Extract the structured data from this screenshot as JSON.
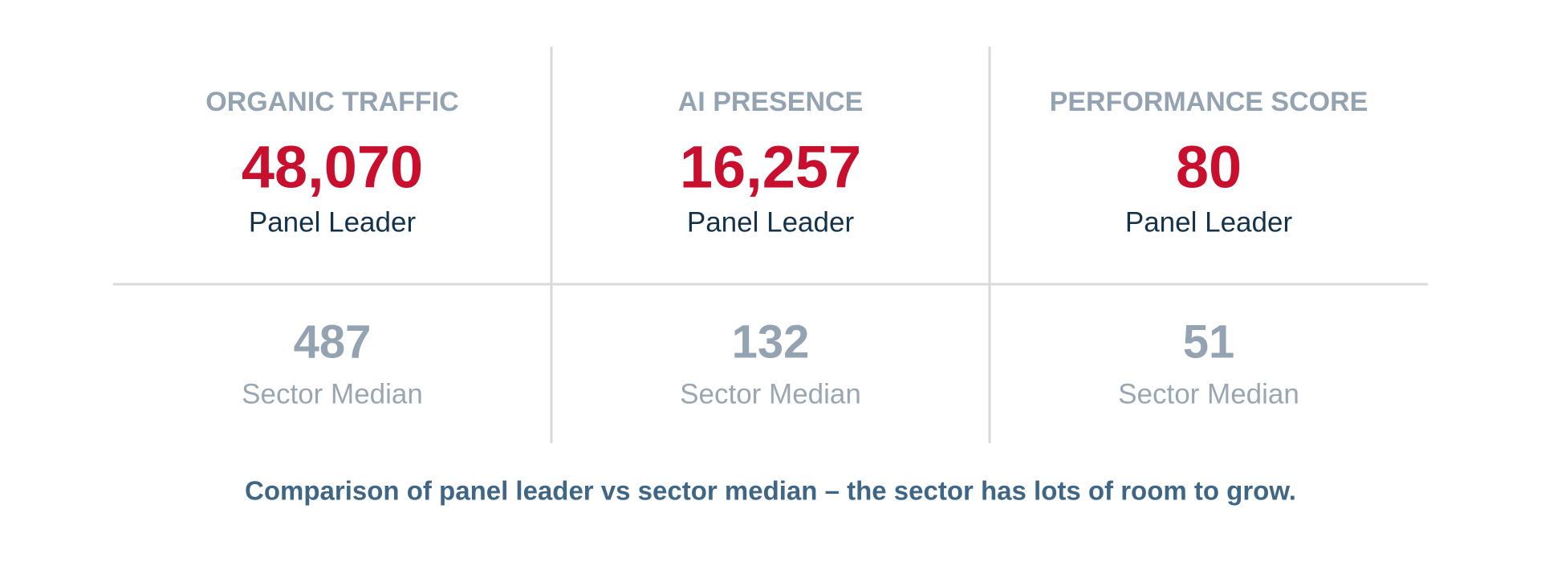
{
  "metrics": [
    {
      "title": "ORGANIC TRAFFIC",
      "leader_value": "48,070",
      "leader_label": "Panel Leader",
      "median_value": "487",
      "median_label": "Sector Median"
    },
    {
      "title": "AI PRESENCE",
      "leader_value": "16,257",
      "leader_label": "Panel Leader",
      "median_value": "132",
      "median_label": "Sector Median"
    },
    {
      "title": "PERFORMANCE SCORE",
      "leader_value": "80",
      "leader_label": "Panel Leader",
      "median_value": "51",
      "median_label": "Sector Median"
    }
  ],
  "caption": "Comparison of panel leader vs sector median – the sector has lots of room to grow."
}
